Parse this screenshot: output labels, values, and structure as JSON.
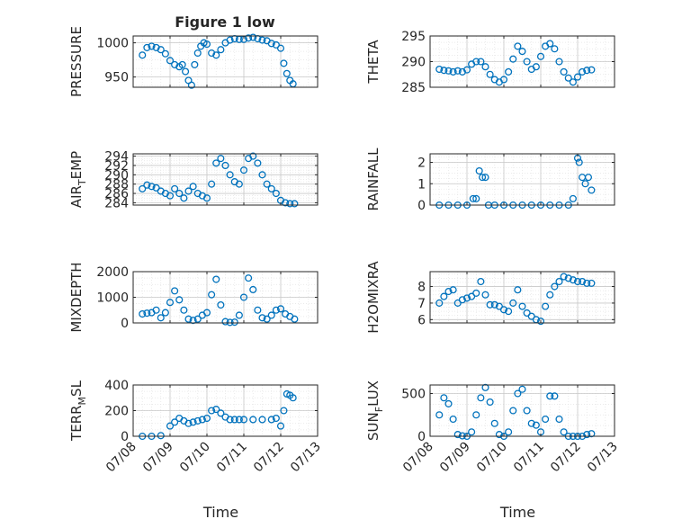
{
  "figure_title": "Figure 1 low",
  "colors": {
    "marker": "#0072BD",
    "axis": "#262626",
    "grid": "#c8c8c8"
  },
  "chart_data": [
    {
      "id": "pressure",
      "type": "scatter",
      "ylabel": "PRESSURE",
      "ylabel_sub": "",
      "ylim": [
        935,
        1010
      ],
      "yticks": [
        950,
        1000
      ],
      "grid": true,
      "x": [
        "07/08 06:00",
        "07/08 09:00",
        "07/08 12:00",
        "07/08 15:00",
        "07/08 18:00",
        "07/08 21:00",
        "07/09 00:00",
        "07/09 03:00",
        "07/09 06:00",
        "07/09 08:00",
        "07/09 10:00",
        "07/09 12:00",
        "07/09 14:00",
        "07/09 16:00",
        "07/09 18:00",
        "07/09 20:00",
        "07/09 22:00",
        "07/10 00:00",
        "07/10 03:00",
        "07/10 06:00",
        "07/10 09:00",
        "07/10 12:00",
        "07/10 15:00",
        "07/10 18:00",
        "07/10 21:00",
        "07/11 00:00",
        "07/11 03:00",
        "07/11 06:00",
        "07/11 09:00",
        "07/11 12:00",
        "07/11 15:00",
        "07/11 18:00",
        "07/11 21:00",
        "07/12 00:00",
        "07/12 02:00",
        "07/12 04:00",
        "07/12 06:00",
        "07/12 08:00"
      ],
      "y": [
        982,
        993,
        995,
        993,
        990,
        984,
        974,
        968,
        965,
        968,
        958,
        945,
        938,
        968,
        985,
        995,
        1000,
        998,
        985,
        982,
        990,
        1000,
        1004,
        1006,
        1005,
        1005,
        1007,
        1008,
        1006,
        1004,
        1003,
        999,
        997,
        992,
        970,
        955,
        945,
        940
      ]
    },
    {
      "id": "theta",
      "type": "scatter",
      "ylabel": "THETA",
      "ylabel_sub": "",
      "ylim": [
        285,
        295
      ],
      "yticks": [
        285,
        290,
        295
      ],
      "grid": true,
      "x": [
        "07/08 06:00",
        "07/08 09:00",
        "07/08 12:00",
        "07/08 15:00",
        "07/08 18:00",
        "07/08 21:00",
        "07/09 00:00",
        "07/09 03:00",
        "07/09 06:00",
        "07/09 09:00",
        "07/09 12:00",
        "07/09 15:00",
        "07/09 18:00",
        "07/09 21:00",
        "07/10 00:00",
        "07/10 03:00",
        "07/10 06:00",
        "07/10 09:00",
        "07/10 12:00",
        "07/10 15:00",
        "07/10 18:00",
        "07/10 21:00",
        "07/11 00:00",
        "07/11 03:00",
        "07/11 06:00",
        "07/11 09:00",
        "07/11 12:00",
        "07/11 15:00",
        "07/11 18:00",
        "07/11 21:00",
        "07/12 00:00",
        "07/12 03:00",
        "07/12 06:00",
        "07/12 09:00"
      ],
      "y": [
        288.5,
        288.3,
        288.2,
        288.0,
        288.2,
        288.0,
        288.4,
        289.5,
        290.0,
        290.0,
        289.0,
        287.5,
        286.5,
        286.0,
        286.5,
        288.0,
        290.5,
        293.0,
        292.0,
        290.0,
        288.5,
        289.0,
        291.0,
        293.0,
        293.5,
        292.5,
        290.0,
        288.0,
        286.8,
        286.0,
        287.0,
        288.0,
        288.3,
        288.4
      ]
    },
    {
      "id": "air_temp",
      "type": "scatter",
      "ylabel": "AIR",
      "ylabel_sub": "T",
      "ylabel_suffix": "EMP",
      "ylim": [
        283.5,
        294.5
      ],
      "yticks": [
        284,
        286,
        288,
        290,
        292,
        294
      ],
      "grid": true,
      "x": [
        "07/08 06:00",
        "07/08 09:00",
        "07/08 12:00",
        "07/08 15:00",
        "07/08 18:00",
        "07/08 21:00",
        "07/09 00:00",
        "07/09 03:00",
        "07/09 06:00",
        "07/09 09:00",
        "07/09 12:00",
        "07/09 15:00",
        "07/09 18:00",
        "07/09 21:00",
        "07/10 00:00",
        "07/10 03:00",
        "07/10 06:00",
        "07/10 09:00",
        "07/10 12:00",
        "07/10 15:00",
        "07/10 18:00",
        "07/10 21:00",
        "07/11 00:00",
        "07/11 03:00",
        "07/11 06:00",
        "07/11 09:00",
        "07/11 12:00",
        "07/11 15:00",
        "07/11 18:00",
        "07/11 21:00",
        "07/12 00:00",
        "07/12 03:00",
        "07/12 06:00",
        "07/12 09:00"
      ],
      "y": [
        287.0,
        287.8,
        287.5,
        287.2,
        286.5,
        286.0,
        285.5,
        287.0,
        286.0,
        285.0,
        286.5,
        287.5,
        286.0,
        285.5,
        285.0,
        288.0,
        292.5,
        293.5,
        292.0,
        290.0,
        288.5,
        288.0,
        291.0,
        293.5,
        294.0,
        292.5,
        290.0,
        288.0,
        287.0,
        286.0,
        284.5,
        284.0,
        283.8,
        283.8
      ]
    },
    {
      "id": "rainfall",
      "type": "scatter",
      "ylabel": "RAINFALL",
      "ylabel_sub": "",
      "ylim": [
        0,
        2.4
      ],
      "yticks": [
        0,
        1,
        2
      ],
      "grid": true,
      "x": [
        "07/08 06:00",
        "07/08 12:00",
        "07/08 18:00",
        "07/09 00:00",
        "07/09 04:00",
        "07/09 06:00",
        "07/09 08:00",
        "07/09 10:00",
        "07/09 12:00",
        "07/09 14:00",
        "07/09 18:00",
        "07/10 00:00",
        "07/10 06:00",
        "07/10 12:00",
        "07/10 18:00",
        "07/11 00:00",
        "07/11 06:00",
        "07/11 12:00",
        "07/11 18:00",
        "07/11 21:00",
        "07/12 00:00",
        "07/12 01:00",
        "07/12 03:00",
        "07/12 05:00",
        "07/12 07:00",
        "07/12 09:00"
      ],
      "y": [
        0,
        0,
        0,
        0,
        0.3,
        0.3,
        1.6,
        1.3,
        1.3,
        0,
        0,
        0,
        0,
        0,
        0,
        0,
        0,
        0,
        0,
        0.3,
        2.2,
        2.0,
        1.3,
        1.0,
        1.3,
        0.7
      ]
    },
    {
      "id": "mixdepth",
      "type": "scatter",
      "ylabel": "MIXDEPTH",
      "ylabel_sub": "",
      "ylim": [
        0,
        2000
      ],
      "yticks": [
        0,
        1000,
        2000
      ],
      "grid": true,
      "x": [
        "07/08 06:00",
        "07/08 09:00",
        "07/08 12:00",
        "07/08 15:00",
        "07/08 18:00",
        "07/08 21:00",
        "07/09 00:00",
        "07/09 03:00",
        "07/09 06:00",
        "07/09 09:00",
        "07/09 12:00",
        "07/09 15:00",
        "07/09 18:00",
        "07/09 21:00",
        "07/10 00:00",
        "07/10 03:00",
        "07/10 06:00",
        "07/10 09:00",
        "07/10 12:00",
        "07/10 15:00",
        "07/10 18:00",
        "07/10 21:00",
        "07/11 00:00",
        "07/11 03:00",
        "07/11 06:00",
        "07/11 09:00",
        "07/11 12:00",
        "07/11 15:00",
        "07/11 18:00",
        "07/11 21:00",
        "07/12 00:00",
        "07/12 03:00",
        "07/12 06:00",
        "07/12 09:00"
      ],
      "y": [
        350,
        380,
        400,
        500,
        200,
        400,
        800,
        1250,
        900,
        500,
        150,
        100,
        150,
        300,
        400,
        1100,
        1700,
        700,
        50,
        20,
        30,
        300,
        1000,
        1750,
        1300,
        500,
        200,
        150,
        300,
        500,
        550,
        350,
        250,
        150
      ]
    },
    {
      "id": "h2omixra",
      "type": "scatter",
      "ylabel": "H2OMIXRA",
      "ylabel_sub": "",
      "ylim": [
        5.8,
        8.9
      ],
      "yticks": [
        6,
        7,
        8
      ],
      "grid": true,
      "x": [
        "07/08 06:00",
        "07/08 09:00",
        "07/08 12:00",
        "07/08 15:00",
        "07/08 18:00",
        "07/08 21:00",
        "07/09 00:00",
        "07/09 03:00",
        "07/09 06:00",
        "07/09 09:00",
        "07/09 12:00",
        "07/09 15:00",
        "07/09 18:00",
        "07/09 21:00",
        "07/10 00:00",
        "07/10 03:00",
        "07/10 06:00",
        "07/10 09:00",
        "07/10 12:00",
        "07/10 15:00",
        "07/10 18:00",
        "07/10 21:00",
        "07/11 00:00",
        "07/11 03:00",
        "07/11 06:00",
        "07/11 09:00",
        "07/11 12:00",
        "07/11 15:00",
        "07/11 18:00",
        "07/11 21:00",
        "07/12 00:00",
        "07/12 03:00",
        "07/12 06:00",
        "07/12 09:00"
      ],
      "y": [
        7.0,
        7.4,
        7.7,
        7.8,
        7.0,
        7.2,
        7.3,
        7.4,
        7.6,
        8.3,
        7.5,
        6.9,
        6.9,
        6.8,
        6.6,
        6.5,
        7.0,
        7.8,
        6.8,
        6.4,
        6.2,
        6.0,
        5.9,
        6.8,
        7.5,
        8.0,
        8.3,
        8.6,
        8.5,
        8.4,
        8.3,
        8.3,
        8.2,
        8.2
      ]
    },
    {
      "id": "terr_msl",
      "type": "scatter",
      "ylabel": "TERR",
      "ylabel_sub": "M",
      "ylabel_suffix": "SL",
      "ylim": [
        0,
        400
      ],
      "yticks": [
        0,
        200,
        400
      ],
      "grid": true,
      "x": [
        "07/08 06:00",
        "07/08 12:00",
        "07/08 18:00",
        "07/09 00:00",
        "07/09 03:00",
        "07/09 06:00",
        "07/09 09:00",
        "07/09 12:00",
        "07/09 15:00",
        "07/09 18:00",
        "07/09 21:00",
        "07/10 00:00",
        "07/10 03:00",
        "07/10 06:00",
        "07/10 09:00",
        "07/10 12:00",
        "07/10 15:00",
        "07/10 18:00",
        "07/10 21:00",
        "07/11 00:00",
        "07/11 06:00",
        "07/11 12:00",
        "07/11 18:00",
        "07/11 21:00",
        "07/12 00:00",
        "07/12 02:00",
        "07/12 04:00",
        "07/12 06:00",
        "07/12 08:00"
      ],
      "y": [
        0,
        0,
        5,
        80,
        110,
        140,
        120,
        100,
        110,
        120,
        130,
        140,
        200,
        210,
        180,
        150,
        130,
        130,
        130,
        130,
        130,
        130,
        130,
        140,
        80,
        200,
        330,
        320,
        300
      ]
    },
    {
      "id": "sun_flux",
      "type": "scatter",
      "ylabel": "SUN",
      "ylabel_sub": "F",
      "ylabel_suffix": "LUX",
      "ylim": [
        0,
        600
      ],
      "yticks": [
        0,
        500
      ],
      "grid": true,
      "x": [
        "07/08 06:00",
        "07/08 09:00",
        "07/08 12:00",
        "07/08 15:00",
        "07/08 18:00",
        "07/08 21:00",
        "07/09 00:00",
        "07/09 03:00",
        "07/09 06:00",
        "07/09 09:00",
        "07/09 12:00",
        "07/09 15:00",
        "07/09 18:00",
        "07/09 21:00",
        "07/10 00:00",
        "07/10 03:00",
        "07/10 06:00",
        "07/10 09:00",
        "07/10 12:00",
        "07/10 15:00",
        "07/10 18:00",
        "07/10 21:00",
        "07/11 00:00",
        "07/11 03:00",
        "07/11 06:00",
        "07/11 09:00",
        "07/11 12:00",
        "07/11 15:00",
        "07/11 18:00",
        "07/11 21:00",
        "07/12 00:00",
        "07/12 03:00",
        "07/12 06:00",
        "07/12 09:00"
      ],
      "y": [
        250,
        450,
        380,
        200,
        20,
        5,
        0,
        50,
        250,
        450,
        570,
        400,
        150,
        20,
        0,
        50,
        300,
        500,
        550,
        300,
        150,
        130,
        50,
        200,
        470,
        470,
        200,
        50,
        0,
        0,
        0,
        0,
        20,
        30
      ]
    }
  ],
  "shared_x": {
    "xlabel": "Time",
    "xlim": [
      "07/08 00:00",
      "07/13 00:00"
    ],
    "xticks": [
      "07/08",
      "07/09",
      "07/10",
      "07/11",
      "07/12",
      "07/13"
    ]
  }
}
